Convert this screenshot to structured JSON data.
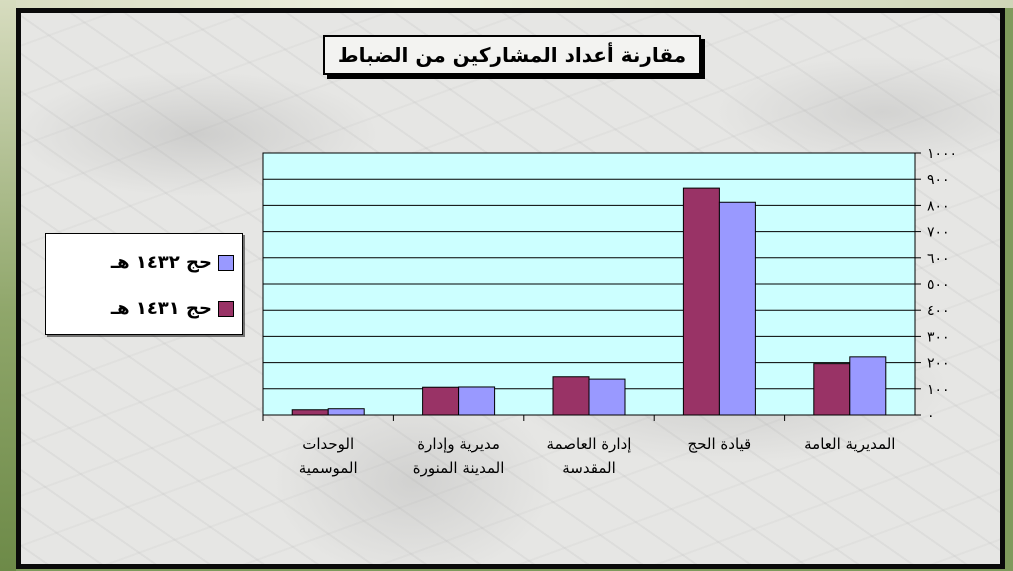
{
  "chart_data": {
    "type": "bar",
    "title": "مقارنة أعداد المشاركين من الضباط",
    "categories": [
      [
        "المديرية العامة"
      ],
      [
        "قيادة الحج"
      ],
      [
        "إدارة العاصمة",
        "المقدسة"
      ],
      [
        "مديرية وإدارة",
        "المدينة المنورة"
      ],
      [
        "الوحدات",
        "الموسمية"
      ]
    ],
    "series": [
      {
        "name": "حج ١٤٣١ هـ",
        "color": "#993366",
        "values": [
          196,
          866,
          146,
          106,
          20
        ]
      },
      {
        "name": "حج ١٤٣٢ هـ",
        "color": "#9999ff",
        "values": [
          222,
          812,
          137,
          107,
          24
        ]
      }
    ],
    "y_ticks": [
      "٠",
      "١٠٠",
      "٢٠٠",
      "٣٠٠",
      "٤٠٠",
      "٥٠٠",
      "٦٠٠",
      "٧٠٠",
      "٨٠٠",
      "٩٠٠",
      "١٠٠٠"
    ],
    "ylim": [
      0,
      1000
    ],
    "grid": true,
    "plot_background": "#ccffff",
    "y_axis_side": "right",
    "legend_position": "left"
  }
}
